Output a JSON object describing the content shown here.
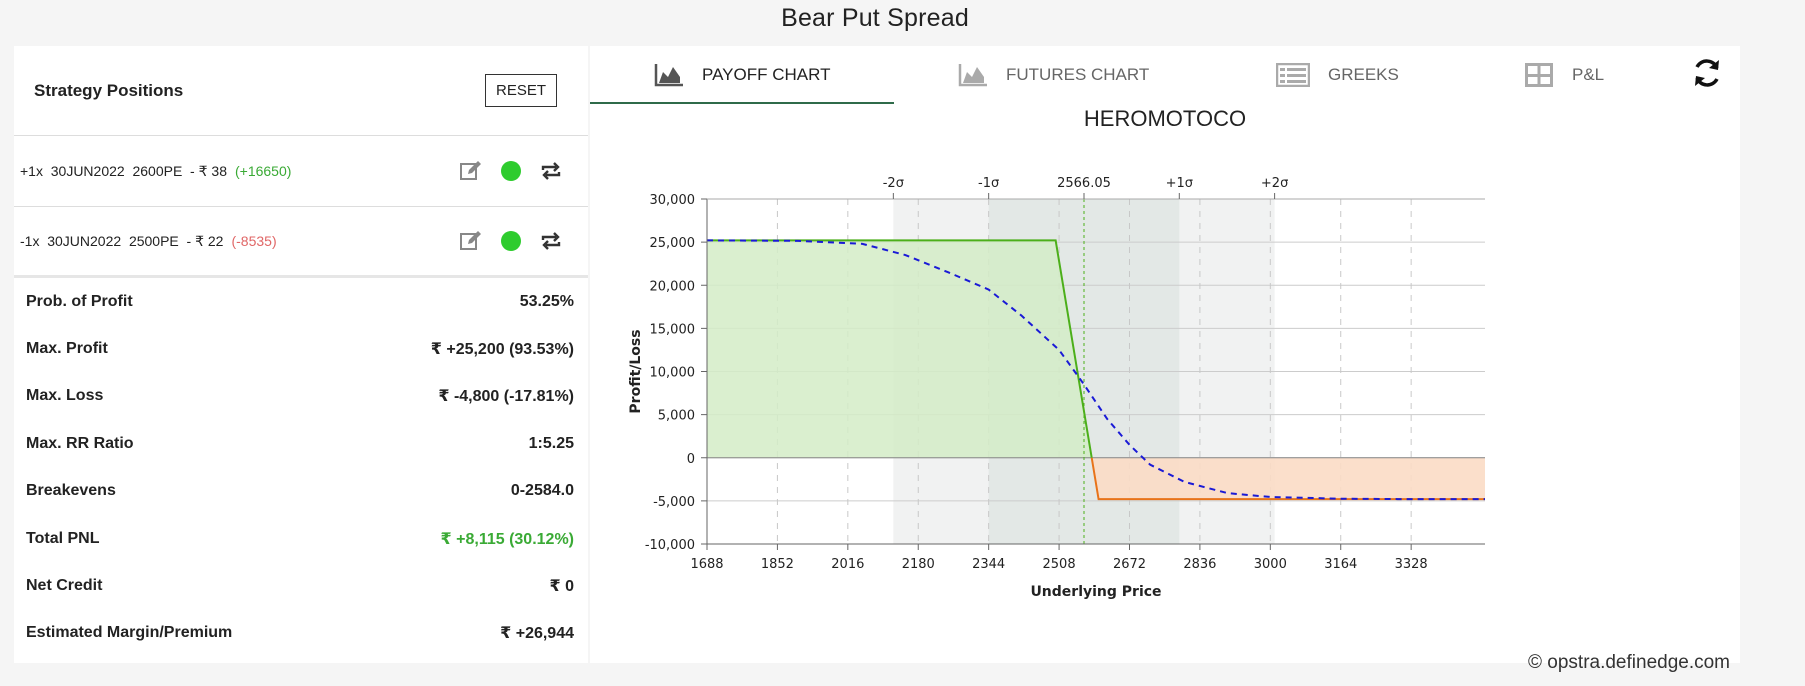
{
  "page_title": "Bear Put Spread",
  "strategy": {
    "title": "Strategy Positions",
    "reset_label": "RESET",
    "positions": [
      {
        "text": "+1x  30JUN2022  2600PE  - ₹ 38",
        "pnl": "(+16650)",
        "pnl_color": "#3aaa35"
      },
      {
        "text": "-1x  30JUN2022  2500PE  - ₹ 22",
        "pnl": "(-8535)",
        "pnl_color": "#e06666"
      }
    ],
    "icons": {
      "edit": "edit-icon",
      "status": "status-dot",
      "roll": "repeat-icon"
    }
  },
  "metrics": [
    {
      "label": "Prob. of Profit",
      "value": "53.25%"
    },
    {
      "label": "Max. Profit",
      "value": "₹ +25,200 (93.53%)"
    },
    {
      "label": "Max. Loss",
      "value": "₹ -4,800 (-17.81%)"
    },
    {
      "label": "Max. RR Ratio",
      "value": "1:5.25"
    },
    {
      "label": "Breakevens",
      "value": "0-2584.0"
    },
    {
      "label": "Total PNL",
      "value": "₹ +8,115 (30.12%)",
      "color": "#3aaa35"
    },
    {
      "label": "Net Credit",
      "value": "₹ 0"
    },
    {
      "label": "Estimated Margin/Premium",
      "value": "₹ +26,944"
    }
  ],
  "tabs": [
    {
      "label": "PAYOFF CHART",
      "icon": "area-chart-icon",
      "active": true
    },
    {
      "label": "FUTURES CHART",
      "icon": "area-chart-icon",
      "active": false
    },
    {
      "label": "GREEKS",
      "icon": "list-icon",
      "active": false
    },
    {
      "label": "P&L",
      "icon": "table-icon",
      "active": false
    }
  ],
  "refresh_icon": "refresh-icon",
  "chart_data": {
    "type": "line",
    "title": "HEROMOTOCO",
    "xlabel": "Underlying Price",
    "ylabel": "Profit/Loss",
    "xlim": [
      1688,
      3500
    ],
    "ylim": [
      -10000,
      30000
    ],
    "x_ticks": [
      1688,
      1852,
      2016,
      2180,
      2344,
      2508,
      2672,
      2836,
      3000,
      3164,
      3328
    ],
    "y_ticks": [
      -10000,
      -5000,
      0,
      5000,
      10000,
      15000,
      20000,
      25000,
      30000
    ],
    "y_tick_labels": [
      "-10,000",
      "-5,000",
      "0",
      "5,000",
      "10,000",
      "15,000",
      "20,000",
      "25,000",
      "30,000"
    ],
    "spot": {
      "x": 2566.05,
      "label": "2566.05"
    },
    "sigma_lines": [
      {
        "label": "-2σ",
        "x": 2122
      },
      {
        "label": "-1σ",
        "x": 2344
      },
      {
        "label": "+1σ",
        "x": 2788
      },
      {
        "label": "+2σ",
        "x": 3010
      }
    ],
    "sigma_band_outer": [
      2122,
      3010
    ],
    "sigma_band_inner": [
      2344,
      2788
    ],
    "series": [
      {
        "style": "solid",
        "color_profit": "#4caf1a",
        "color_loss": "#e8731a",
        "points": [
          [
            1688,
            25200
          ],
          [
            2500,
            25200
          ],
          [
            2584,
            0
          ],
          [
            2600,
            -4800
          ],
          [
            3500,
            -4800
          ]
        ]
      },
      {
        "style": "dashed",
        "color": "#1a1ad6",
        "points": [
          [
            1688,
            25200
          ],
          [
            1900,
            25150
          ],
          [
            2050,
            24800
          ],
          [
            2150,
            23500
          ],
          [
            2250,
            21500
          ],
          [
            2344,
            19500
          ],
          [
            2420,
            16500
          ],
          [
            2508,
            12500
          ],
          [
            2566,
            8500
          ],
          [
            2620,
            4500
          ],
          [
            2672,
            1500
          ],
          [
            2720,
            -800
          ],
          [
            2800,
            -2800
          ],
          [
            2900,
            -4100
          ],
          [
            3000,
            -4550
          ],
          [
            3164,
            -4750
          ],
          [
            3328,
            -4800
          ],
          [
            3500,
            -4800
          ]
        ]
      }
    ],
    "grid": true,
    "colors": {
      "profit_fill": "#d3ecc7",
      "loss_fill": "#fbdcc5",
      "band_outer": "#f1f2f2",
      "band_inner": "#e3e8e6",
      "spot_line": "#4caf1a"
    }
  },
  "footer": "© opstra.definedge.com"
}
